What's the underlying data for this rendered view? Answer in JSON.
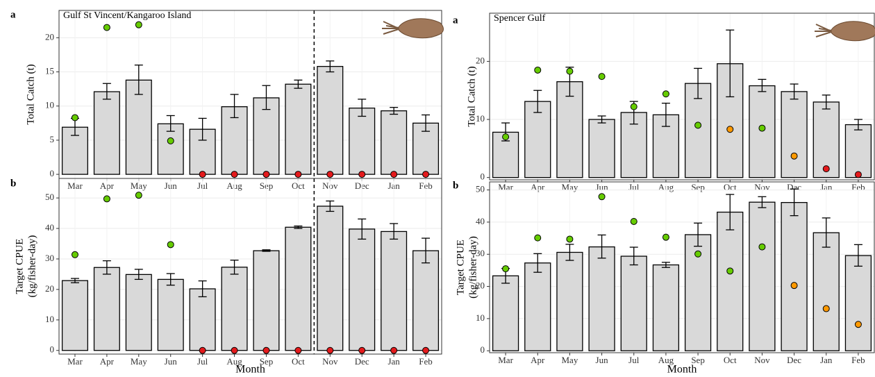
{
  "chart_data": [
    {
      "type": "bar",
      "panel_label": "a",
      "title": "Gulf St Vincent/Kangaroo Island",
      "ylabel": [
        "Total Catch (t)"
      ],
      "categories": [
        "Mar",
        "Apr",
        "May",
        "Jun",
        "Jul",
        "Aug",
        "Sep",
        "Oct",
        "Nov",
        "Dec",
        "Jan",
        "Feb"
      ],
      "values": [
        6.9,
        12.1,
        13.8,
        7.4,
        6.6,
        9.9,
        11.2,
        13.2,
        15.8,
        9.7,
        9.3,
        7.5
      ],
      "lower": [
        5.7,
        11.0,
        11.7,
        6.3,
        5.0,
        8.3,
        9.5,
        12.6,
        15.0,
        8.5,
        8.8,
        6.3
      ],
      "upper": [
        8.2,
        13.3,
        16.0,
        8.6,
        8.2,
        11.7,
        13.0,
        13.8,
        16.6,
        11.0,
        9.8,
        8.7
      ],
      "points": [
        8.3,
        21.5,
        21.9,
        4.9,
        0,
        0,
        0,
        0,
        0,
        0,
        0,
        0
      ],
      "point_colors": [
        "#66cc00",
        "#66cc00",
        "#66cc00",
        "#66cc00",
        "#e41a1c",
        "#e41a1c",
        "#e41a1c",
        "#e41a1c",
        "#e41a1c",
        "#e41a1c",
        "#e41a1c",
        "#e41a1c"
      ],
      "bar_color": "#d9d9d9",
      "ylim": [
        -0.6,
        24
      ],
      "yticks": [
        0,
        5,
        10,
        15,
        20
      ],
      "grid": true,
      "divider_after": "Oct"
    },
    {
      "type": "bar",
      "panel_label": "b",
      "ylabel": [
        "Target CPUE",
        "(kg/fisher-day)"
      ],
      "xlabel": "Month",
      "categories": [
        "Mar",
        "Apr",
        "May",
        "Jun",
        "Jul",
        "Aug",
        "Sep",
        "Oct",
        "Nov",
        "Dec",
        "Jan",
        "Feb"
      ],
      "values": [
        22.9,
        27.2,
        24.9,
        23.3,
        20.2,
        27.3,
        32.7,
        40.4,
        47.3,
        39.8,
        39.0,
        32.7
      ],
      "lower": [
        22.2,
        25.0,
        23.3,
        21.4,
        17.6,
        25.0,
        32.5,
        40.0,
        45.6,
        36.5,
        36.5,
        28.7
      ],
      "upper": [
        23.6,
        29.4,
        26.6,
        25.2,
        22.8,
        29.6,
        33.0,
        40.8,
        49.0,
        43.1,
        41.6,
        36.8
      ],
      "points": [
        31.4,
        49.7,
        50.9,
        34.7,
        0,
        0,
        0,
        0,
        0,
        0,
        0,
        0
      ],
      "point_colors": [
        "#66cc00",
        "#66cc00",
        "#66cc00",
        "#66cc00",
        "#e41a1c",
        "#e41a1c",
        "#e41a1c",
        "#e41a1c",
        "#e41a1c",
        "#e41a1c",
        "#e41a1c",
        "#e41a1c"
      ],
      "bar_color": "#d9d9d9",
      "ylim": [
        -1.2,
        56.4
      ],
      "yticks": [
        0,
        10,
        20,
        30,
        40,
        50
      ],
      "grid": true,
      "divider_after": "Oct"
    },
    {
      "type": "bar",
      "panel_label": "a",
      "title": "Spencer Gulf",
      "ylabel": [
        "Total Catch (t)"
      ],
      "categories": [
        "Mar",
        "Apr",
        "May",
        "Jun",
        "Jul",
        "Aug",
        "Sep",
        "Oct",
        "Nov",
        "Dec",
        "Jan",
        "Feb"
      ],
      "values": [
        7.8,
        13.1,
        16.5,
        10.0,
        11.2,
        10.8,
        16.2,
        19.6,
        15.8,
        14.8,
        13.0,
        9.1
      ],
      "lower": [
        6.3,
        11.2,
        14.0,
        9.4,
        9.2,
        8.8,
        13.6,
        13.9,
        14.8,
        13.5,
        11.8,
        8.2
      ],
      "upper": [
        9.4,
        15.0,
        19.0,
        10.6,
        13.1,
        12.8,
        18.8,
        25.4,
        16.9,
        16.1,
        14.2,
        10.0
      ],
      "points": [
        7.0,
        18.5,
        18.3,
        17.4,
        12.2,
        14.4,
        9.0,
        8.3,
        8.5,
        3.7,
        1.5,
        0.5
      ],
      "point_colors": [
        "#66cc00",
        "#66cc00",
        "#66cc00",
        "#66cc00",
        "#66cc00",
        "#66cc00",
        "#66cc00",
        "#ff9900",
        "#66cc00",
        "#ff9900",
        "#e41a1c",
        "#e41a1c"
      ],
      "bar_color": "#d9d9d9",
      "ylim": [
        -0.4,
        28.3
      ],
      "yticks": [
        0,
        10,
        20
      ],
      "grid": true
    },
    {
      "type": "bar",
      "panel_label": "b",
      "ylabel": [
        "Target CPUE",
        "(kg/fisher-day)"
      ],
      "xlabel": "Month",
      "categories": [
        "Mar",
        "Apr",
        "May",
        "Jun",
        "Jul",
        "Aug",
        "Sep",
        "Oct",
        "Nov",
        "Dec",
        "Jan",
        "Feb"
      ],
      "values": [
        23.3,
        27.3,
        30.6,
        32.3,
        29.4,
        26.7,
        36.1,
        43.1,
        46.2,
        46.1,
        36.7,
        29.6
      ],
      "lower": [
        21.0,
        24.4,
        28.1,
        28.8,
        26.7,
        25.9,
        32.5,
        37.6,
        44.5,
        42.0,
        32.2,
        26.3
      ],
      "upper": [
        25.6,
        30.2,
        33.1,
        36.0,
        32.2,
        27.5,
        39.7,
        48.6,
        47.9,
        50.3,
        41.3,
        33.0
      ],
      "points": [
        25.5,
        35.1,
        34.7,
        47.9,
        40.2,
        35.3,
        30.1,
        24.8,
        32.3,
        20.3,
        13.1,
        8.2
      ],
      "point_colors": [
        "#66cc00",
        "#66cc00",
        "#66cc00",
        "#66cc00",
        "#66cc00",
        "#66cc00",
        "#66cc00",
        "#66cc00",
        "#66cc00",
        "#ff9900",
        "#ff9900",
        "#ff9900"
      ],
      "bar_color": "#d9d9d9",
      "ylim": [
        -0.6,
        52.5
      ],
      "yticks": [
        0,
        10,
        20,
        30,
        40,
        50
      ],
      "grid": true
    }
  ]
}
